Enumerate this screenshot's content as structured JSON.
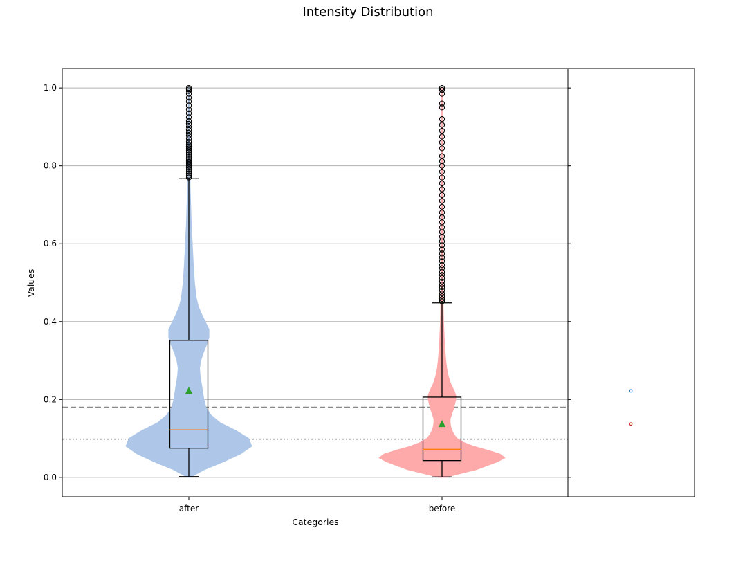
{
  "chart_data": {
    "type": "violin",
    "title": "Intensity Distribution",
    "xlabel": "Categories",
    "ylabel": "Values",
    "categories": [
      "after",
      "before"
    ],
    "ylim": [
      -0.05,
      1.05
    ],
    "yticks": [
      0.0,
      0.2,
      0.4,
      0.6,
      0.8,
      1.0
    ],
    "ytick_labels": [
      "0.0",
      "0.2",
      "0.4",
      "0.6",
      "0.8",
      "1.0"
    ],
    "grid": "horizontal",
    "reference_lines": [
      {
        "value": 0.18,
        "style": "dashed"
      },
      {
        "value": 0.098,
        "style": "dotted"
      }
    ],
    "series": [
      {
        "category": "after",
        "color": "#aec7e8",
        "marker_color": "#1f77b4",
        "box": {
          "whisker_low": 0.002,
          "q1": 0.075,
          "median": 0.122,
          "q3": 0.352,
          "whisker_high": 0.767
        },
        "mean": 0.222,
        "violin_profile": [
          [
            0.0,
            0.02
          ],
          [
            0.02,
            0.25
          ],
          [
            0.04,
            0.55
          ],
          [
            0.06,
            0.82
          ],
          [
            0.08,
            1.0
          ],
          [
            0.1,
            0.95
          ],
          [
            0.12,
            0.75
          ],
          [
            0.14,
            0.5
          ],
          [
            0.16,
            0.35
          ],
          [
            0.18,
            0.27
          ],
          [
            0.2,
            0.24
          ],
          [
            0.22,
            0.22
          ],
          [
            0.24,
            0.2
          ],
          [
            0.26,
            0.18
          ],
          [
            0.28,
            0.17
          ],
          [
            0.3,
            0.19
          ],
          [
            0.32,
            0.23
          ],
          [
            0.34,
            0.28
          ],
          [
            0.36,
            0.32
          ],
          [
            0.38,
            0.32
          ],
          [
            0.4,
            0.26
          ],
          [
            0.42,
            0.2
          ],
          [
            0.44,
            0.15
          ],
          [
            0.46,
            0.12
          ],
          [
            0.5,
            0.09
          ],
          [
            0.55,
            0.07
          ],
          [
            0.6,
            0.055
          ],
          [
            0.65,
            0.04
          ],
          [
            0.7,
            0.03
          ],
          [
            0.75,
            0.02
          ],
          [
            0.8,
            0.015
          ],
          [
            0.85,
            0.012
          ],
          [
            0.9,
            0.01
          ],
          [
            0.95,
            0.008
          ],
          [
            1.0,
            0.005
          ]
        ],
        "outliers": [
          0.77,
          0.775,
          0.78,
          0.785,
          0.79,
          0.795,
          0.8,
          0.805,
          0.81,
          0.815,
          0.82,
          0.825,
          0.83,
          0.835,
          0.84,
          0.845,
          0.85,
          0.855,
          0.862,
          0.87,
          0.878,
          0.885,
          0.892,
          0.9,
          0.908,
          0.915,
          0.925,
          0.935,
          0.945,
          0.955,
          0.965,
          0.975,
          0.985,
          0.992,
          0.996,
          1.0
        ]
      },
      {
        "category": "before",
        "color": "#ffaaaa",
        "marker_color": "#d62728",
        "box": {
          "whisker_low": 0.001,
          "q1": 0.043,
          "median": 0.072,
          "q3": 0.206,
          "whisker_high": 0.448
        },
        "mean": 0.137,
        "violin_profile": [
          [
            0.0,
            0.05
          ],
          [
            0.02,
            0.55
          ],
          [
            0.04,
            0.88
          ],
          [
            0.05,
            1.0
          ],
          [
            0.06,
            0.92
          ],
          [
            0.07,
            0.72
          ],
          [
            0.08,
            0.5
          ],
          [
            0.09,
            0.34
          ],
          [
            0.1,
            0.24
          ],
          [
            0.11,
            0.19
          ],
          [
            0.12,
            0.16
          ],
          [
            0.13,
            0.14
          ],
          [
            0.14,
            0.13
          ],
          [
            0.15,
            0.13
          ],
          [
            0.16,
            0.15
          ],
          [
            0.18,
            0.19
          ],
          [
            0.2,
            0.22
          ],
          [
            0.21,
            0.22
          ],
          [
            0.22,
            0.2
          ],
          [
            0.24,
            0.14
          ],
          [
            0.26,
            0.1
          ],
          [
            0.28,
            0.075
          ],
          [
            0.3,
            0.06
          ],
          [
            0.33,
            0.045
          ],
          [
            0.36,
            0.035
          ],
          [
            0.4,
            0.025
          ],
          [
            0.45,
            0.018
          ],
          [
            0.5,
            0.013
          ],
          [
            0.6,
            0.009
          ],
          [
            0.7,
            0.007
          ],
          [
            0.8,
            0.005
          ],
          [
            0.9,
            0.004
          ],
          [
            1.0,
            0.003
          ]
        ],
        "outliers": [
          0.452,
          0.458,
          0.465,
          0.472,
          0.48,
          0.488,
          0.495,
          0.503,
          0.512,
          0.52,
          0.528,
          0.537,
          0.545,
          0.555,
          0.565,
          0.575,
          0.585,
          0.596,
          0.606,
          0.618,
          0.63,
          0.642,
          0.655,
          0.668,
          0.68,
          0.695,
          0.71,
          0.725,
          0.74,
          0.755,
          0.77,
          0.785,
          0.8,
          0.812,
          0.825,
          0.845,
          0.86,
          0.875,
          0.89,
          0.905,
          0.92,
          0.95,
          0.96,
          0.985,
          0.995,
          1.0
        ]
      }
    ],
    "side_panel": {
      "markers": [
        {
          "value": 0.222,
          "color": "#1f77b4"
        },
        {
          "value": 0.137,
          "color": "#d62728"
        }
      ]
    }
  }
}
